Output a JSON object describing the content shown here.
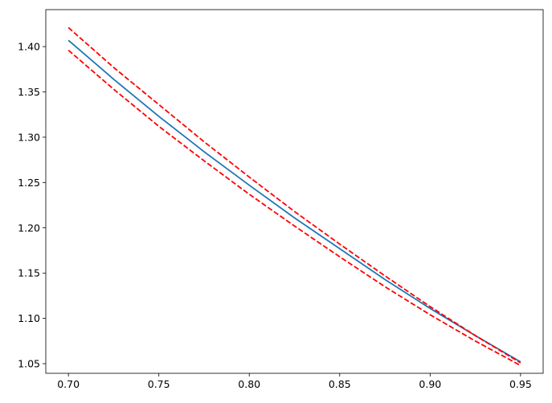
{
  "chart_data": {
    "type": "line",
    "x": [
      0.7,
      0.725,
      0.75,
      0.775,
      0.8,
      0.825,
      0.85,
      0.875,
      0.9,
      0.925,
      0.95
    ],
    "series": [
      {
        "color": "#1f77b4",
        "dashed": false,
        "values": [
          1.407,
          1.364,
          1.323,
          1.284,
          1.247,
          1.211,
          1.177,
          1.143,
          1.111,
          1.081,
          1.052
        ]
      },
      {
        "color": "#ff0000",
        "dashed": true,
        "values": [
          1.421,
          1.377,
          1.336,
          1.295,
          1.256,
          1.218,
          1.182,
          1.147,
          1.113,
          1.081,
          1.051
        ]
      },
      {
        "color": "#ff0000",
        "dashed": true,
        "values": [
          1.396,
          1.353,
          1.312,
          1.274,
          1.237,
          1.202,
          1.168,
          1.135,
          1.104,
          1.075,
          1.048
        ]
      }
    ],
    "xlim": [
      0.6875,
      0.9625
    ],
    "ylim": [
      1.0394,
      1.4408
    ],
    "xticks": [
      {
        "value": 0.7,
        "label": "0.70"
      },
      {
        "value": 0.75,
        "label": "0.75"
      },
      {
        "value": 0.8,
        "label": "0.80"
      },
      {
        "value": 0.85,
        "label": "0.85"
      },
      {
        "value": 0.9,
        "label": "0.90"
      },
      {
        "value": 0.95,
        "label": "0.95"
      }
    ],
    "yticks": [
      {
        "value": 1.05,
        "label": "1.05"
      },
      {
        "value": 1.1,
        "label": "1.10"
      },
      {
        "value": 1.15,
        "label": "1.15"
      },
      {
        "value": 1.2,
        "label": "1.20"
      },
      {
        "value": 1.25,
        "label": "1.25"
      },
      {
        "value": 1.3,
        "label": "1.30"
      },
      {
        "value": 1.35,
        "label": "1.35"
      },
      {
        "value": 1.4,
        "label": "1.40"
      }
    ],
    "grid": false
  }
}
